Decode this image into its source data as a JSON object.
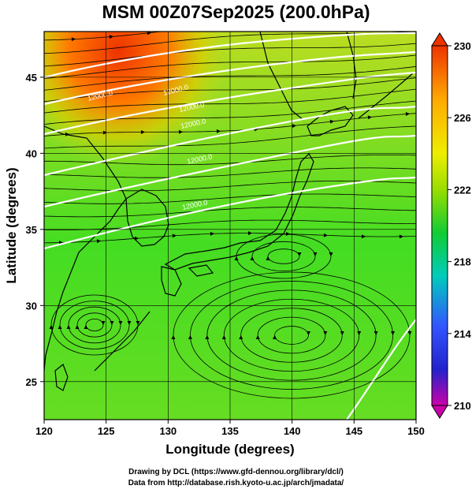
{
  "title": "MSM 00Z07Sep2025 (200.0hPa)",
  "xlabel": "Longitude (degrees)",
  "ylabel": "Latitude  (degrees)",
  "x_ticks": [
    "120",
    "125",
    "130",
    "135",
    "140",
    "145",
    "150"
  ],
  "y_ticks": [
    "25",
    "30",
    "35",
    "40",
    "45"
  ],
  "colorbar": {
    "labels": [
      "230",
      "226",
      "222",
      "218",
      "214",
      "210"
    ],
    "min": 210,
    "max": 230,
    "colors": [
      "#cc00aa",
      "#3355ff",
      "#00ccbb",
      "#11cc33",
      "#99dd00",
      "#eeee00",
      "#ffaa00",
      "#ee3300"
    ]
  },
  "contour_labels": [
    "12000.0",
    "12000.0",
    "12000.0",
    "12000.0",
    "12000.0",
    "12000.0"
  ],
  "credits": {
    "line1": "Drawing by DCL (https://www.gfd-dennou.org/library/dcl/)",
    "line2": "Data from http://database.rish.kyoto-u.ac.jp/arch/jmadata/"
  },
  "map_extent": {
    "lon": [
      120,
      150
    ],
    "lat": [
      22.5,
      48
    ]
  }
}
